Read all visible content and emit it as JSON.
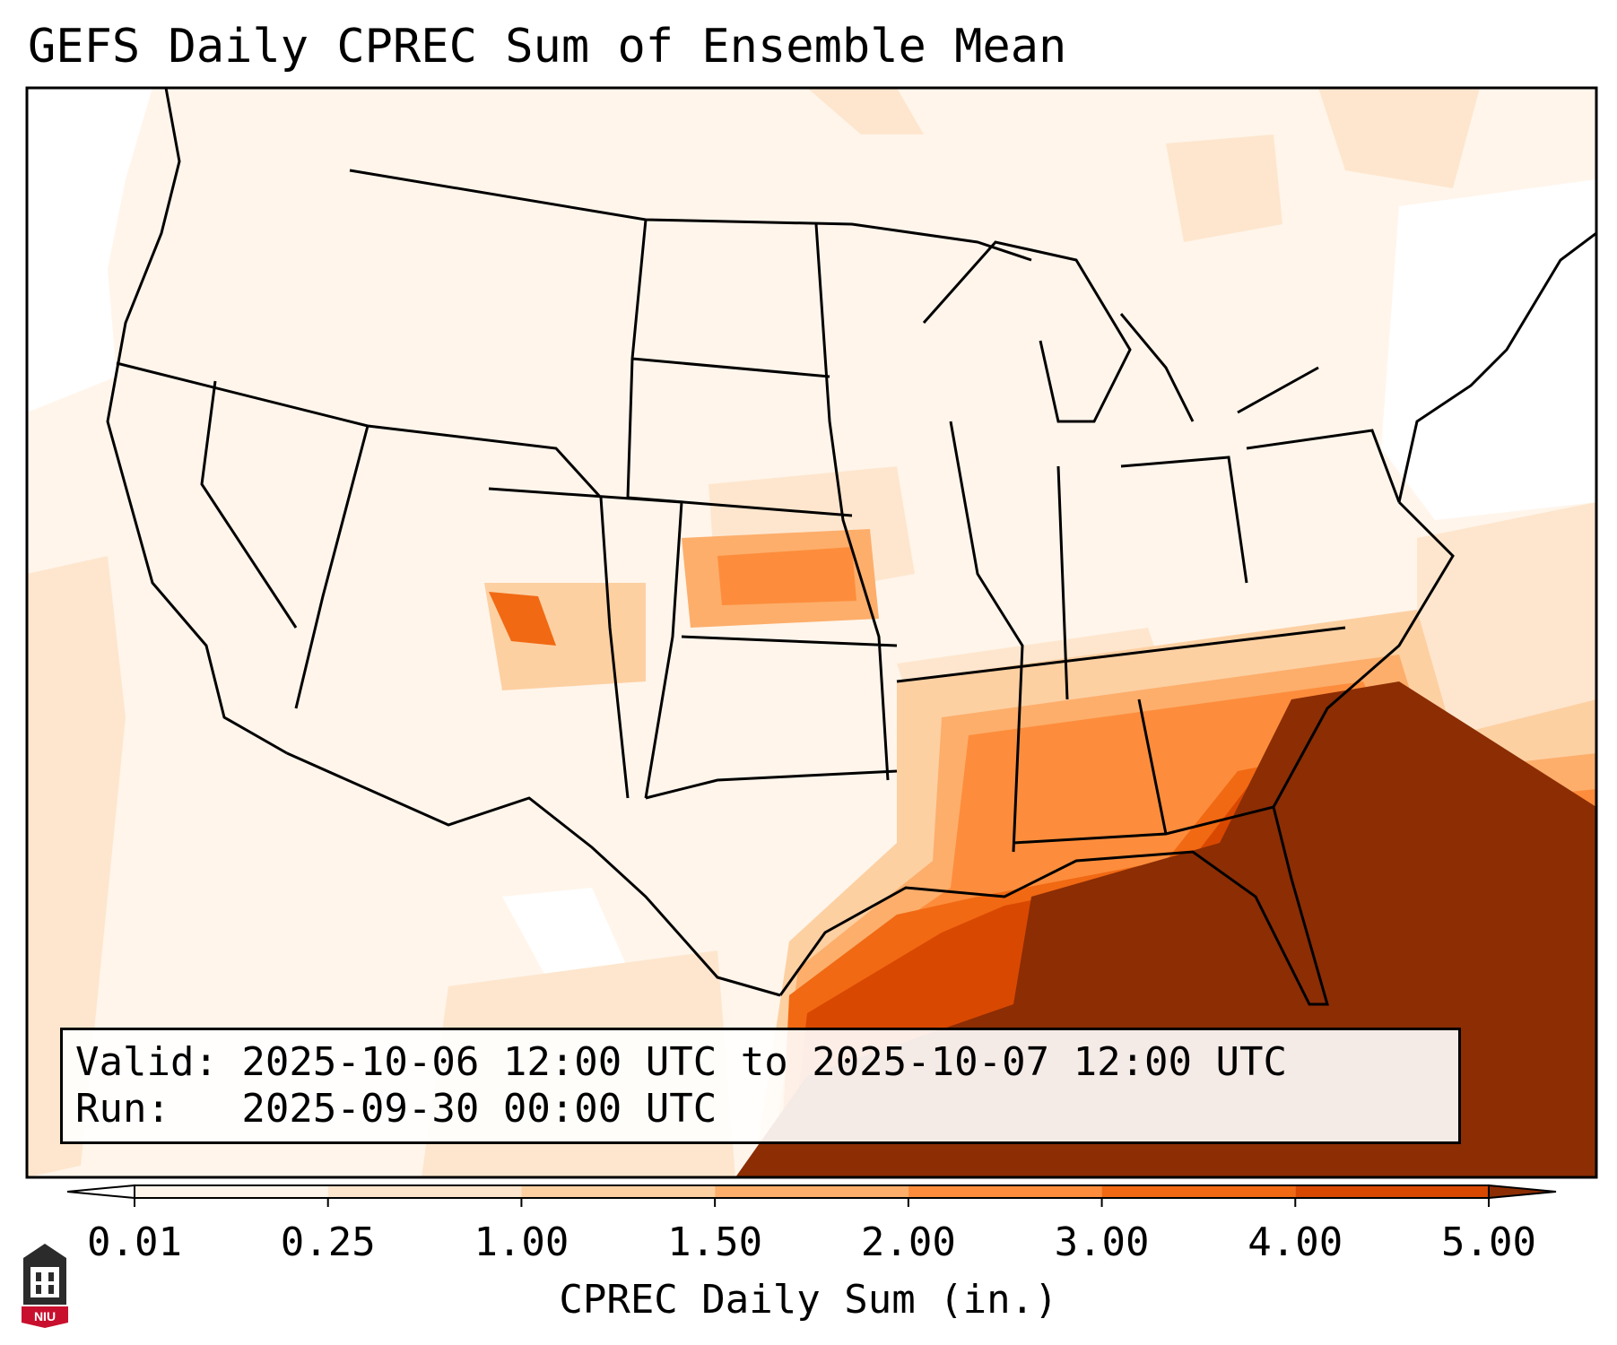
{
  "title": "GEFS Daily CPREC Sum of Ensemble Mean",
  "info": {
    "valid_line": "Valid: 2025-10-06 12:00 UTC to 2025-10-07 12:00 UTC",
    "run_line": "Run:   2025-09-30 00:00 UTC"
  },
  "colorbar": {
    "title": "CPREC Daily Sum (in.)",
    "ticks": [
      "0.01",
      "0.25",
      "1.00",
      "1.50",
      "2.00",
      "3.00",
      "4.00",
      "5.00"
    ],
    "colors": [
      "#fff5eb",
      "#fee6ce",
      "#fdd0a2",
      "#fdae6b",
      "#fd8d3c",
      "#f16913",
      "#d94801",
      "#8c2d04"
    ],
    "under_color": "#ffffff",
    "over_color": "#8c2d04"
  },
  "logo": {
    "text": "NIU",
    "colors": {
      "body": "#2b2b2b",
      "accent": "#c8102e"
    }
  }
}
